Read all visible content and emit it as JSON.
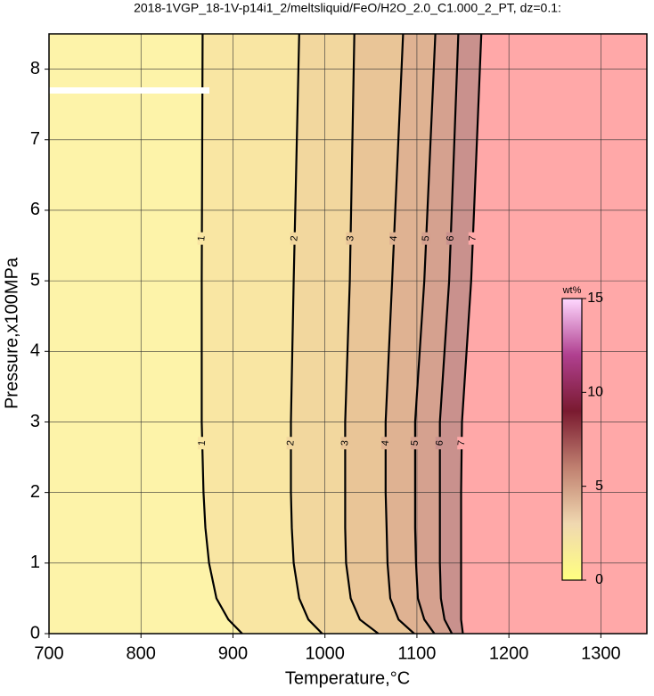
{
  "chart_data": {
    "type": "contour",
    "title": "2018-1VGP_18-1V-p14i1_2/meltsliquid/FeO/H2O_2.0_C1.000_2_PT, dz=0.1:",
    "x_label": "Temperature,°C",
    "y_label": "Pressure,x100MPa",
    "xlim": [
      700,
      1350
    ],
    "xticks": [
      700,
      800,
      900,
      1000,
      1100,
      1200,
      1300
    ],
    "ylim": [
      0,
      8.5
    ],
    "yticks": [
      0,
      1,
      2,
      3,
      4,
      5,
      6,
      7,
      8
    ],
    "grid": true,
    "contours": [
      {
        "level": 1,
        "y": [
          0,
          0.2,
          0.5,
          1,
          1.5,
          2,
          3,
          5,
          8.5
        ],
        "x": [
          910,
          895,
          882,
          874,
          870,
          868,
          866,
          866,
          867
        ]
      },
      {
        "level": 2,
        "y": [
          0,
          0.2,
          0.5,
          1,
          1.5,
          2,
          3,
          5,
          8.5
        ],
        "x": [
          997,
          982,
          972,
          966,
          964,
          963,
          963,
          966,
          972
        ]
      },
      {
        "level": 3,
        "y": [
          0,
          0.2,
          0.5,
          1,
          1.5,
          2,
          3,
          5,
          8.5
        ],
        "x": [
          1058,
          1038,
          1028,
          1023,
          1022,
          1022,
          1022,
          1027,
          1032
        ]
      },
      {
        "level": 4,
        "y": [
          0,
          0.2,
          0.5,
          1,
          1.5,
          2,
          3,
          5,
          8.5
        ],
        "x": [
          1097,
          1080,
          1071,
          1068,
          1067,
          1066,
          1066,
          1073,
          1085
        ]
      },
      {
        "level": 5,
        "y": [
          0,
          0.2,
          0.5,
          1,
          1.5,
          2,
          3,
          5,
          8.5
        ],
        "x": [
          1119,
          1108,
          1101,
          1099,
          1098,
          1098,
          1098,
          1108,
          1120
        ]
      },
      {
        "level": 6,
        "y": [
          0,
          0.2,
          0.5,
          1,
          1.5,
          2,
          3,
          5,
          8.5
        ],
        "x": [
          1138,
          1130,
          1126,
          1125,
          1125,
          1125,
          1125,
          1135,
          1145
        ]
      },
      {
        "level": 7,
        "y": [
          0,
          0.2,
          0.5,
          1,
          1.5,
          2,
          3,
          5,
          8.5
        ],
        "x": [
          1150,
          1148,
          1148,
          1148,
          1148,
          1148,
          1149,
          1159,
          1170
        ]
      }
    ],
    "region_colors": [
      "#fdf3a9",
      "#f9e6a3",
      "#f2d79e",
      "#e9c597",
      "#dfb292",
      "#d5a18f",
      "#c9918d",
      "#ffa8a8"
    ],
    "colorbar": {
      "label": "wt%",
      "lim": [
        0,
        15
      ],
      "ticks": [
        0,
        5,
        10,
        15
      ],
      "colors": [
        "#ffff80",
        "#f0d8b0",
        "#c08070",
        "#7a1a30",
        "#b04090",
        "#ffd8ff"
      ]
    }
  }
}
